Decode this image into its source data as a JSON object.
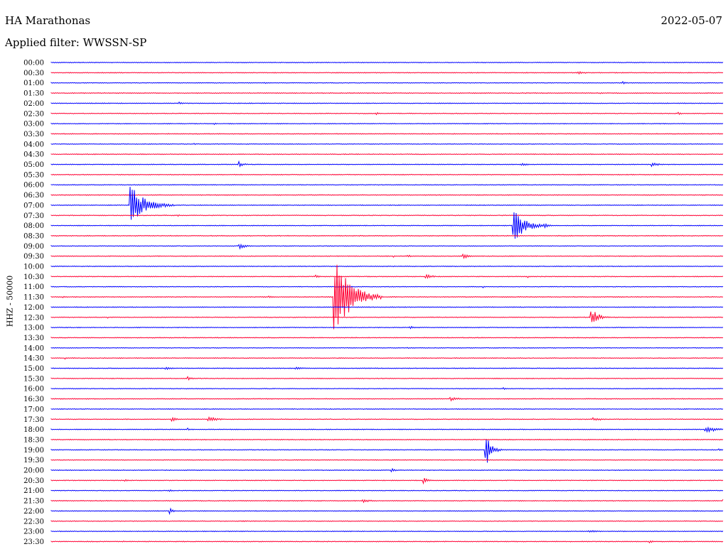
{
  "header": {
    "station": "HA Marathonas",
    "date": "2022-05-07",
    "filter": "Applied filter: WWSSN-SP"
  },
  "colors": {
    "blue": "#0000ff",
    "red": "#ff0033"
  },
  "chart_data": {
    "type": "line",
    "title": "HA Marathonas",
    "ylabel": "HHZ - 50000",
    "xlabel": "",
    "rows": [
      "00:00",
      "00:30",
      "01:00",
      "01:30",
      "02:00",
      "02:30",
      "03:00",
      "03:30",
      "04:00",
      "04:30",
      "05:00",
      "05:30",
      "06:00",
      "06:30",
      "07:00",
      "07:30",
      "08:00",
      "08:30",
      "09:00",
      "09:30",
      "10:00",
      "10:30",
      "11:00",
      "11:30",
      "12:00",
      "12:30",
      "13:00",
      "13:30",
      "14:00",
      "14:30",
      "15:00",
      "15:30",
      "16:00",
      "16:30",
      "17:00",
      "17:30",
      "18:00",
      "18:30",
      "19:00",
      "19:30",
      "20:00",
      "20:30",
      "21:00",
      "21:30",
      "22:00",
      "22:30",
      "23:00",
      "23:30"
    ],
    "row_colors": [
      "blue",
      "red"
    ],
    "x_range_minutes": [
      0,
      30
    ],
    "events": [
      {
        "row": "00:30",
        "minute": 23.5,
        "amp": 2,
        "dur": 1.3
      },
      {
        "row": "01:00",
        "minute": 9.5,
        "amp": 1.5,
        "dur": 0.5
      },
      {
        "row": "01:00",
        "minute": 25.5,
        "amp": 2,
        "dur": 0.6
      },
      {
        "row": "01:30",
        "minute": 24.5,
        "amp": 1.5,
        "dur": 0.3
      },
      {
        "row": "02:00",
        "minute": 5.7,
        "amp": 2,
        "dur": 0.6
      },
      {
        "row": "02:30",
        "minute": 14.5,
        "amp": 2,
        "dur": 0.5
      },
      {
        "row": "02:30",
        "minute": 28.0,
        "amp": 2,
        "dur": 0.9
      },
      {
        "row": "03:00",
        "minute": 7.3,
        "amp": 1.5,
        "dur": 0.2
      },
      {
        "row": "04:00",
        "minute": 6.4,
        "amp": 1.5,
        "dur": 0.2
      },
      {
        "row": "05:00",
        "minute": 8.4,
        "amp": 4,
        "dur": 0.7
      },
      {
        "row": "05:00",
        "minute": 21.0,
        "amp": 3,
        "dur": 1.0
      },
      {
        "row": "05:00",
        "minute": 26.8,
        "amp": 3.5,
        "dur": 1.0
      },
      {
        "row": "07:00",
        "minute": 3.5,
        "amp": 30,
        "dur": 2.0
      },
      {
        "row": "07:30",
        "minute": 5.6,
        "amp": 2,
        "dur": 0.5
      },
      {
        "row": "08:00",
        "minute": 20.6,
        "amp": 26,
        "dur": 1.6
      },
      {
        "row": "08:00",
        "minute": 22.0,
        "amp": 3.5,
        "dur": 0.7
      },
      {
        "row": "09:00",
        "minute": 8.4,
        "amp": 5,
        "dur": 0.8
      },
      {
        "row": "09:30",
        "minute": 15.3,
        "amp": 1.5,
        "dur": 0.3
      },
      {
        "row": "09:30",
        "minute": 15.9,
        "amp": 1.5,
        "dur": 0.3
      },
      {
        "row": "09:30",
        "minute": 16.0,
        "amp": 1.5,
        "dur": 0.3
      },
      {
        "row": "09:30",
        "minute": 18.4,
        "amp": 5,
        "dur": 0.6
      },
      {
        "row": "10:30",
        "minute": 11.8,
        "amp": 2.5,
        "dur": 0.6
      },
      {
        "row": "10:30",
        "minute": 16.7,
        "amp": 5,
        "dur": 0.8
      },
      {
        "row": "10:30",
        "minute": 21.3,
        "amp": 1.5,
        "dur": 0.3
      },
      {
        "row": "11:00",
        "minute": 19.3,
        "amp": 1.5,
        "dur": 0.4
      },
      {
        "row": "11:30",
        "minute": 0.5,
        "amp": 2,
        "dur": 0.3
      },
      {
        "row": "11:30",
        "minute": 9.7,
        "amp": 2,
        "dur": 0.5
      },
      {
        "row": "11:30",
        "minute": 12.6,
        "amp": 60,
        "dur": 2.2
      },
      {
        "row": "12:30",
        "minute": 2.5,
        "amp": 2,
        "dur": 0.3
      },
      {
        "row": "12:30",
        "minute": 24.1,
        "amp": 14,
        "dur": 1.0
      },
      {
        "row": "13:00",
        "minute": 16.0,
        "amp": 2,
        "dur": 1.5
      },
      {
        "row": "14:00",
        "minute": 15.9,
        "amp": 1.5,
        "dur": 0.3
      },
      {
        "row": "14:00",
        "minute": 29.8,
        "amp": 1.5,
        "dur": 0.3
      },
      {
        "row": "14:30",
        "minute": 0.6,
        "amp": 2,
        "dur": 0.4
      },
      {
        "row": "15:00",
        "minute": 5.1,
        "amp": 3,
        "dur": 0.7
      },
      {
        "row": "15:00",
        "minute": 10.9,
        "amp": 2.5,
        "dur": 1.3
      },
      {
        "row": "15:30",
        "minute": 6.1,
        "amp": 2.5,
        "dur": 0.6
      },
      {
        "row": "16:00",
        "minute": 20.2,
        "amp": 1.5,
        "dur": 0.4
      },
      {
        "row": "16:30",
        "minute": 17.8,
        "amp": 3,
        "dur": 1.2
      },
      {
        "row": "17:30",
        "minute": 5.4,
        "amp": 3.5,
        "dur": 0.6
      },
      {
        "row": "17:30",
        "minute": 7.0,
        "amp": 4,
        "dur": 1.2
      },
      {
        "row": "17:30",
        "minute": 24.2,
        "amp": 3,
        "dur": 1.2
      },
      {
        "row": "18:00",
        "minute": 6.1,
        "amp": 2,
        "dur": 0.3
      },
      {
        "row": "18:00",
        "minute": 29.2,
        "amp": 5,
        "dur": 1.5
      },
      {
        "row": "19:00",
        "minute": 19.4,
        "amp": 28,
        "dur": 0.7
      },
      {
        "row": "19:00",
        "minute": 29.8,
        "amp": 3,
        "dur": 0.4
      },
      {
        "row": "20:00",
        "minute": 15.2,
        "amp": 3,
        "dur": 0.6
      },
      {
        "row": "20:30",
        "minute": 3.3,
        "amp": 2,
        "dur": 0.3
      },
      {
        "row": "20:30",
        "minute": 16.6,
        "amp": 5,
        "dur": 0.7
      },
      {
        "row": "21:00",
        "minute": 5.3,
        "amp": 2,
        "dur": 0.5
      },
      {
        "row": "21:30",
        "minute": 13.9,
        "amp": 3,
        "dur": 1.0
      },
      {
        "row": "21:30",
        "minute": 30.0,
        "amp": 3,
        "dur": 0.5
      },
      {
        "row": "22:00",
        "minute": 5.3,
        "amp": 4,
        "dur": 0.5
      },
      {
        "row": "22:30",
        "minute": 8.5,
        "amp": 2,
        "dur": 0.5
      },
      {
        "row": "23:00",
        "minute": 24.0,
        "amp": 2,
        "dur": 1.2
      },
      {
        "row": "23:30",
        "minute": 3.2,
        "amp": 1.5,
        "dur": 0.2
      },
      {
        "row": "23:30",
        "minute": 26.7,
        "amp": 3,
        "dur": 0.4
      }
    ]
  }
}
